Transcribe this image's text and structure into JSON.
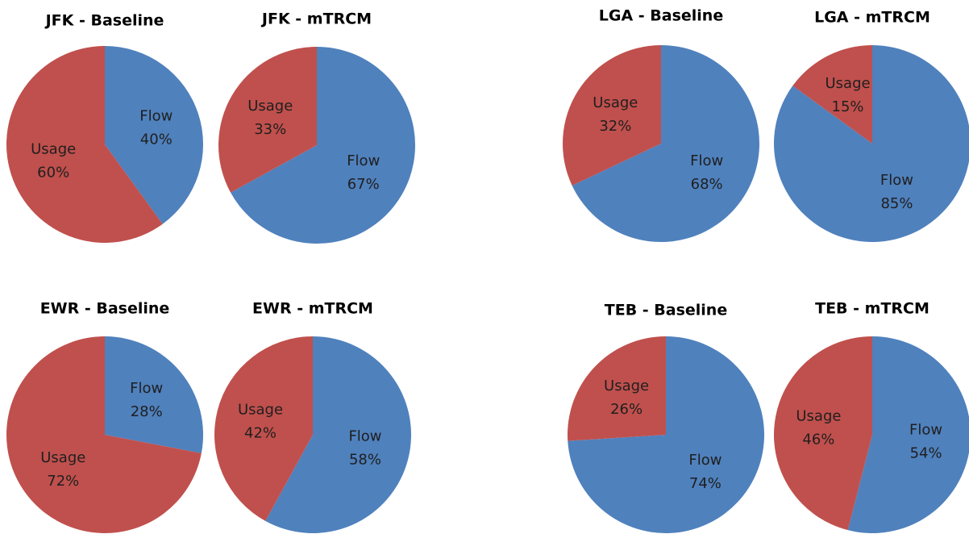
{
  "chart_data": [
    {
      "type": "pie",
      "title": "JFK - Baseline",
      "categories": [
        "Flow",
        "Usage"
      ],
      "values": [
        40,
        60
      ],
      "value_labels": [
        "40%",
        "60%"
      ],
      "colors": [
        "#4f81bd",
        "#c0504d"
      ]
    },
    {
      "type": "pie",
      "title": "JFK - mTRCM",
      "categories": [
        "Flow",
        "Usage"
      ],
      "values": [
        67,
        33
      ],
      "value_labels": [
        "67%",
        "33%"
      ],
      "colors": [
        "#4f81bd",
        "#c0504d"
      ]
    },
    {
      "type": "pie",
      "title": "LGA - Baseline",
      "categories": [
        "Flow",
        "Usage"
      ],
      "values": [
        68,
        32
      ],
      "value_labels": [
        "68%",
        "32%"
      ],
      "colors": [
        "#4f81bd",
        "#c0504d"
      ]
    },
    {
      "type": "pie",
      "title": "LGA - mTRCM",
      "categories": [
        "Flow",
        "Usage"
      ],
      "values": [
        85,
        15
      ],
      "value_labels": [
        "85%",
        "15%"
      ],
      "colors": [
        "#4f81bd",
        "#c0504d"
      ]
    },
    {
      "type": "pie",
      "title": "EWR - Baseline",
      "categories": [
        "Flow",
        "Usage"
      ],
      "values": [
        28,
        72
      ],
      "value_labels": [
        "28%",
        "72%"
      ],
      "colors": [
        "#4f81bd",
        "#c0504d"
      ]
    },
    {
      "type": "pie",
      "title": "EWR - mTRCM",
      "categories": [
        "Flow",
        "Usage"
      ],
      "values": [
        58,
        42
      ],
      "value_labels": [
        "58%",
        "42%"
      ],
      "colors": [
        "#4f81bd",
        "#c0504d"
      ]
    },
    {
      "type": "pie",
      "title": "TEB - Baseline",
      "categories": [
        "Flow",
        "Usage"
      ],
      "values": [
        74,
        26
      ],
      "value_labels": [
        "74%",
        "26%"
      ],
      "colors": [
        "#4f81bd",
        "#c0504d"
      ]
    },
    {
      "type": "pie",
      "title": "TEB - mTRCM",
      "categories": [
        "Flow",
        "Usage"
      ],
      "values": [
        54,
        46
      ],
      "value_labels": [
        "54%",
        "46%"
      ],
      "colors": [
        "#4f81bd",
        "#c0504d"
      ]
    }
  ]
}
